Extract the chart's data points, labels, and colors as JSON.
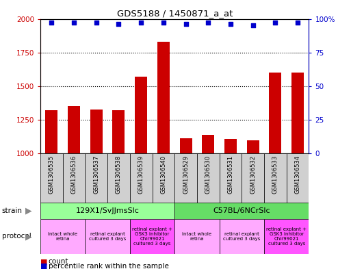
{
  "title": "GDS5188 / 1450871_a_at",
  "samples": [
    "GSM1306535",
    "GSM1306536",
    "GSM1306537",
    "GSM1306538",
    "GSM1306539",
    "GSM1306540",
    "GSM1306529",
    "GSM1306530",
    "GSM1306531",
    "GSM1306532",
    "GSM1306533",
    "GSM1306534"
  ],
  "counts": [
    1320,
    1350,
    1325,
    1320,
    1570,
    1830,
    1110,
    1140,
    1105,
    1095,
    1600,
    1600
  ],
  "percentiles": [
    97,
    97,
    97,
    96,
    97,
    97,
    96,
    97,
    96,
    95,
    97,
    97
  ],
  "ylim_left": [
    1000,
    2000
  ],
  "ylim_right": [
    0,
    100
  ],
  "yticks_left": [
    1000,
    1250,
    1500,
    1750,
    2000
  ],
  "yticks_right": [
    0,
    25,
    50,
    75,
    100
  ],
  "bar_color": "#cc0000",
  "dot_color": "#0000cc",
  "bg_color": "#ffffff",
  "sample_box_color": "#d0d0d0",
  "strain_groups": [
    {
      "label": "129X1/SvJJmsSlc",
      "start": 0,
      "end": 6,
      "color": "#99ff99"
    },
    {
      "label": "C57BL/6NCrSlc",
      "start": 6,
      "end": 12,
      "color": "#66dd66"
    }
  ],
  "protocol_groups": [
    {
      "label": "intact whole\nretina",
      "start": 0,
      "end": 2,
      "color": "#ffaaff"
    },
    {
      "label": "retinal explant\ncultured 3 days",
      "start": 2,
      "end": 4,
      "color": "#ffaaff"
    },
    {
      "label": "retinal explant +\nGSK3 inhibitor\nChir99021\ncultured 3 days",
      "start": 4,
      "end": 6,
      "color": "#ff55ff"
    },
    {
      "label": "intact whole\nretina",
      "start": 6,
      "end": 8,
      "color": "#ffaaff"
    },
    {
      "label": "retinal explant\ncultured 3 days",
      "start": 8,
      "end": 10,
      "color": "#ffaaff"
    },
    {
      "label": "retinal explant +\nGSK3 inhibitor\nChir99021\ncultured 3 days",
      "start": 10,
      "end": 12,
      "color": "#ff55ff"
    }
  ],
  "tick_color_left": "#cc0000",
  "tick_color_right": "#0000cc",
  "arrow_color": "#888888",
  "legend_count_color": "#cc0000",
  "legend_pct_color": "#0000cc"
}
